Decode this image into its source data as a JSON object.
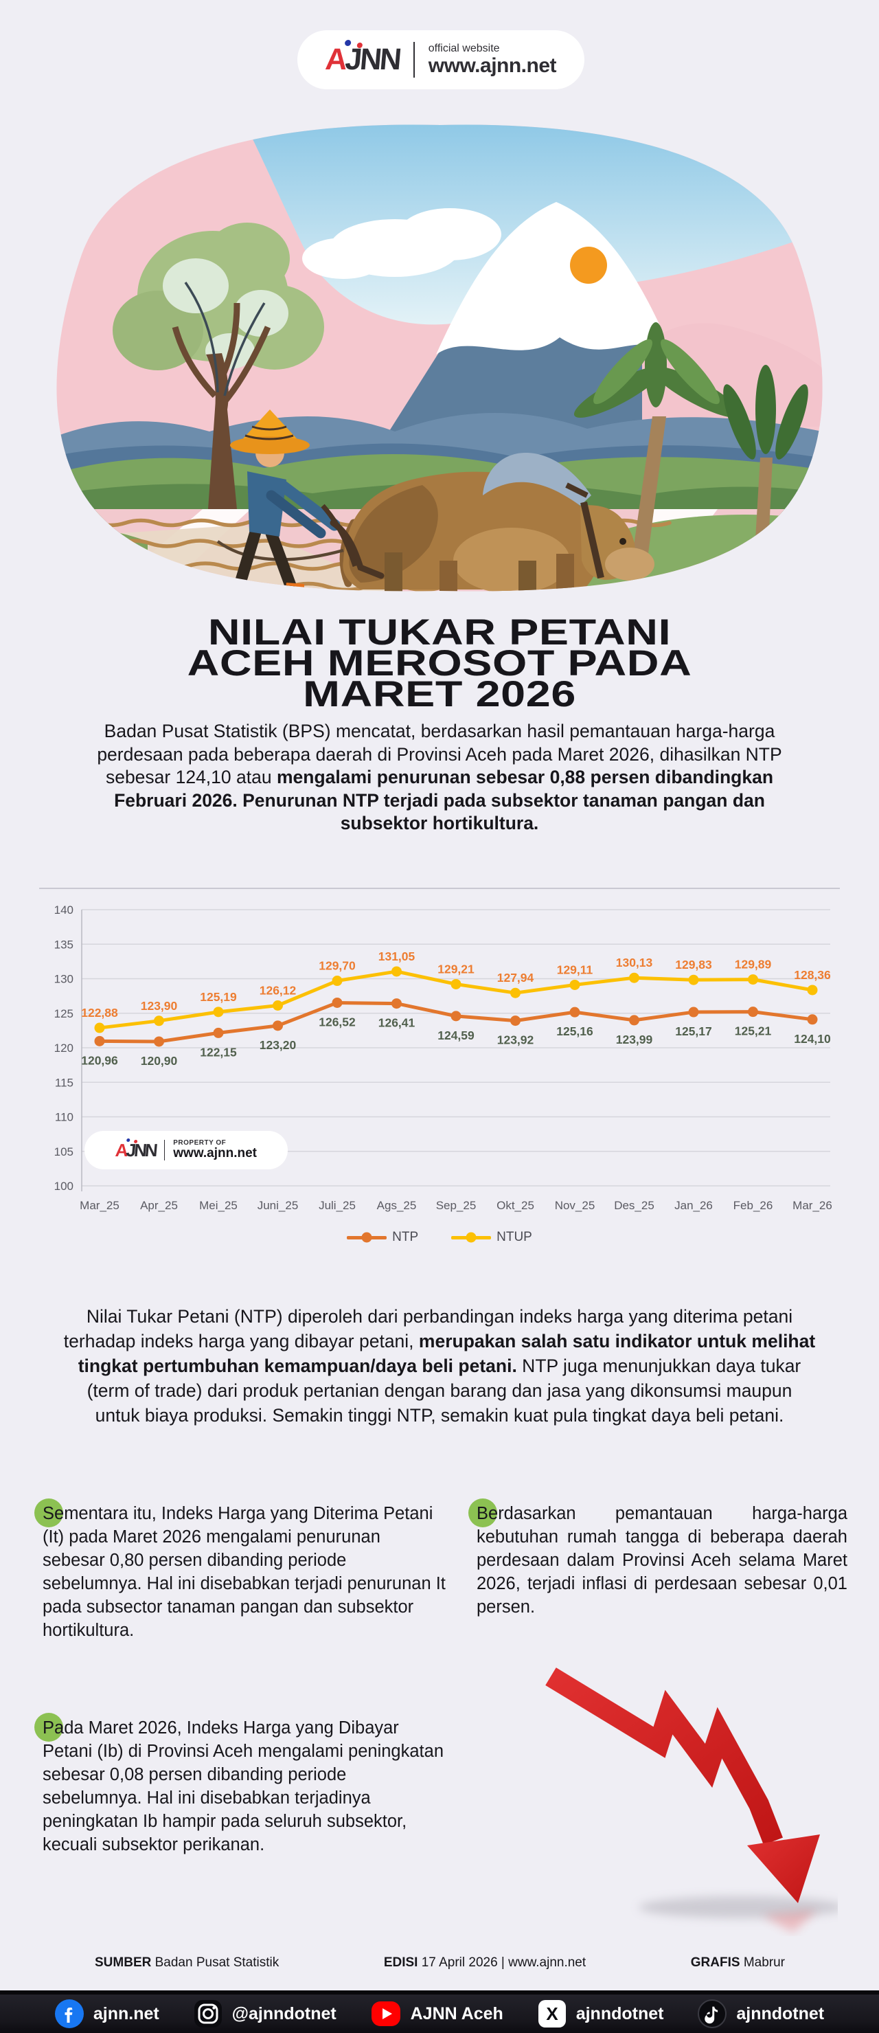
{
  "header": {
    "logo_text": "AJNN",
    "tagline": "official website",
    "site": "www.ajnn.net"
  },
  "title": {
    "lines": [
      "NILAI TUKAR PETANI",
      "ACEH MEROSOT PADA",
      "MARET 2026"
    ]
  },
  "intro": {
    "normal": "Badan Pusat Statistik (BPS) mencatat, berdasarkan hasil pemantauan harga-harga perdesaan pada beberapa daerah di Provinsi Aceh pada Maret 2026, dihasilkan NTP sebesar 124,10 atau ",
    "bold": "mengalami penurunan sebesar 0,88 persen dibandingkan Februari 2026. Penurunan NTP terjadi pada subsektor tanaman pangan dan subsektor hortikultura."
  },
  "chart_data": {
    "type": "line",
    "categories": [
      "Mar_25",
      "Apr_25",
      "Mei_25",
      "Juni_25",
      "Juli_25",
      "Ags_25",
      "Sep_25",
      "Okt_25",
      "Nov_25",
      "Des_25",
      "Jan_26",
      "Feb_26",
      "Mar_26"
    ],
    "series": [
      {
        "name": "NTP",
        "color": "#e2762d",
        "label_color": "#51604d",
        "values": [
          120.96,
          120.9,
          122.15,
          123.2,
          126.52,
          126.41,
          124.59,
          123.92,
          125.16,
          123.99,
          125.17,
          125.21,
          124.1
        ]
      },
      {
        "name": "NTUP",
        "color": "#fcc004",
        "label_color": "#ed7d31",
        "values": [
          122.88,
          123.9,
          125.19,
          126.12,
          129.7,
          131.05,
          129.21,
          127.94,
          129.11,
          130.13,
          129.83,
          129.89,
          128.36
        ]
      }
    ],
    "ylim": [
      100,
      140
    ],
    "ytick_step": 5,
    "grid": true,
    "legend_position": "bottom",
    "title": "",
    "xlabel": "",
    "ylabel": ""
  },
  "watermark": {
    "logo_text": "AJNN",
    "label": "PROPERTY OF",
    "site": "www.ajnn.net"
  },
  "definition": {
    "part1": "Nilai Tukar Petani (NTP) diperoleh dari perbandingan indeks harga yang diterima petani terhadap indeks harga yang dibayar petani, ",
    "bold": "merupakan salah satu indikator untuk melihat tingkat pertumbuhan kemampuan/daya beli petani.",
    "part2": " NTP juga menunjukkan daya tukar (term of trade) dari produk pertanian dengan barang dan jasa yang dikonsumsi maupun untuk biaya produksi. Semakin tinggi NTP, semakin kuat pula tingkat daya beli petani."
  },
  "bullets": {
    "left": [
      {
        "text": "Sementara itu, Indeks Harga yang Diterima Petani (It) pada Maret 2026 mengalami penurunan sebesar 0,80 persen dibanding periode sebelumnya. Hal ini disebabkan terjadi penurunan It pada subsector tanaman pangan dan subsektor hortikultura."
      },
      {
        "text": "Pada Maret 2026, Indeks Harga yang Dibayar Petani (Ib) di Provinsi Aceh mengalami peningkatan sebesar 0,08 persen dibanding periode sebelumnya. Hal ini disebabkan terjadinya peningkatan Ib hampir pada seluruh subsektor, kecuali subsektor perikanan."
      }
    ],
    "right": [
      {
        "text": "Berdasarkan pemantauan harga-harga kebutuhan rumah tangga di beberapa daerah perdesaan dalam Provinsi Aceh selama Maret 2026, terjadi inflasi di perdesaan sebesar 0,01 persen."
      }
    ],
    "bullet_color": "#8cc152"
  },
  "footer": {
    "items": [
      {
        "label": "SUMBER",
        "value": "Badan Pusat Statistik"
      },
      {
        "label": "EDISI",
        "value": "17 April 2026 | www.ajnn.net"
      },
      {
        "label": "GRAFIS",
        "value": "Mabrur"
      }
    ]
  },
  "social": {
    "items": [
      {
        "icon": "facebook-icon",
        "label": "ajnn.net"
      },
      {
        "icon": "instagram-icon",
        "label": "@ajnndotnet"
      },
      {
        "icon": "youtube-icon",
        "label": "AJNN Aceh"
      },
      {
        "icon": "x-icon",
        "label": "ajnndotnet"
      },
      {
        "icon": "tiktok-icon",
        "label": "ajnndotnet"
      }
    ]
  },
  "colors": {
    "accent_red": "#d21e1e",
    "ntp": "#e2762d",
    "ntup": "#fcc004",
    "facebook_blue": "#1877f2",
    "youtube_red": "#ff0000",
    "page_bg": "#efeef4",
    "bar_bg": "#17161c"
  }
}
